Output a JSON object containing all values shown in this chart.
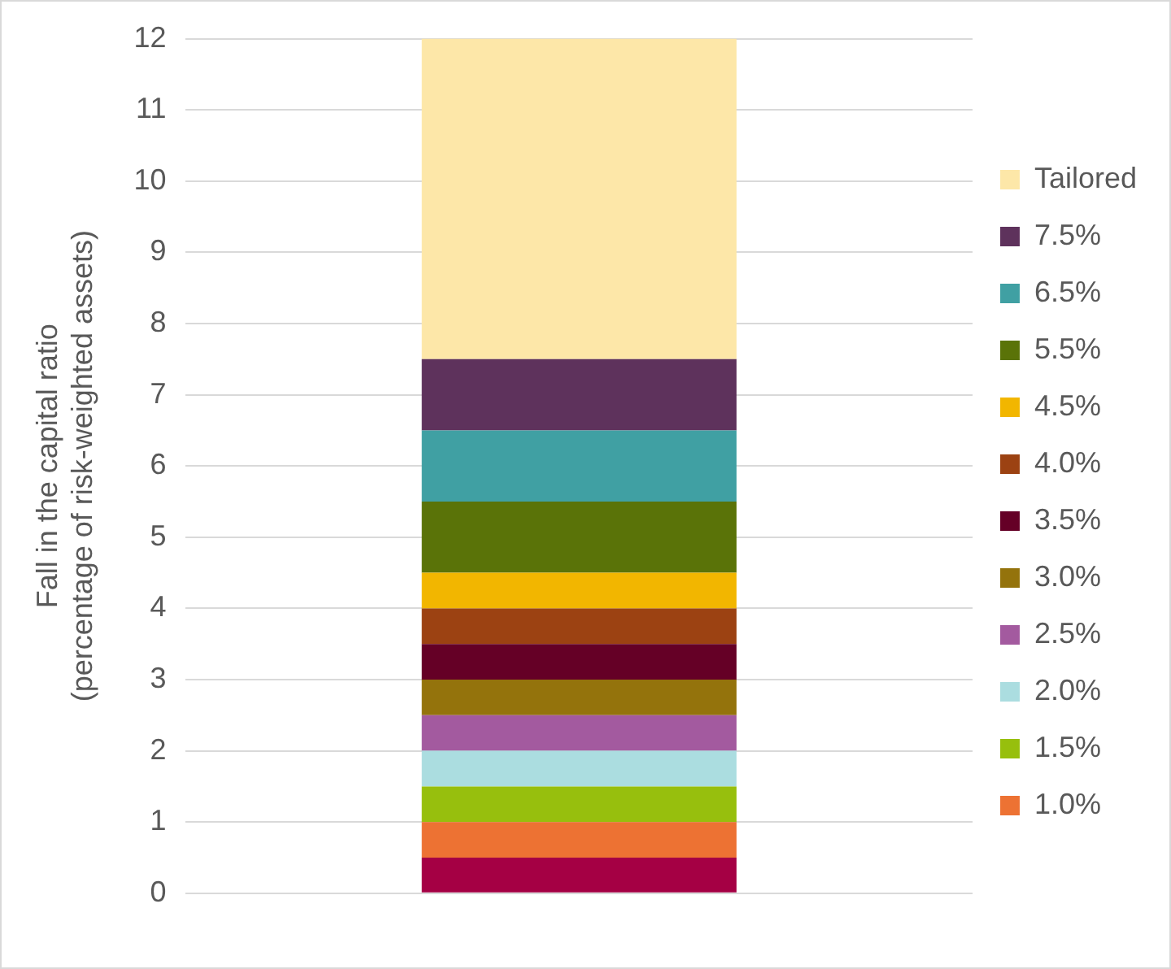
{
  "chart_data": {
    "type": "bar",
    "ylabel": "Fall in the capital ratio\n(percentage of risk-weighted assets)",
    "categories": [
      null
    ],
    "stacked": true,
    "ylim": [
      0,
      12
    ],
    "yticks": [
      0,
      1,
      2,
      3,
      4,
      5,
      6,
      7,
      8,
      9,
      10,
      11,
      12
    ],
    "grid": "y",
    "legend": "right",
    "series": [
      {
        "color": "#a50044",
        "values": [
          0.5
        ]
      },
      {
        "name": "1.0%",
        "color": "#ed7233",
        "values": [
          0.5
        ]
      },
      {
        "name": "1.5%",
        "color": "#97bf0d",
        "values": [
          0.5
        ]
      },
      {
        "name": "2.0%",
        "color": "#abdde0",
        "values": [
          0.5
        ]
      },
      {
        "name": "2.5%",
        "color": "#a35a9f",
        "values": [
          0.5
        ]
      },
      {
        "name": "3.0%",
        "color": "#94730c",
        "values": [
          0.5
        ]
      },
      {
        "name": "3.5%",
        "color": "#650026",
        "values": [
          0.5
        ]
      },
      {
        "name": "4.0%",
        "color": "#9c4212",
        "values": [
          0.5
        ]
      },
      {
        "name": "4.5%",
        "color": "#f2b600",
        "values": [
          0.5
        ]
      },
      {
        "name": "5.5%",
        "color": "#5a7308",
        "values": [
          1
        ]
      },
      {
        "name": "6.5%",
        "color": "#40a0a3",
        "values": [
          1
        ]
      },
      {
        "name": "7.5%",
        "color": "#5e325c",
        "values": [
          1
        ]
      },
      {
        "name": "Tailored",
        "color": "#fde7a8",
        "values": [
          4.5
        ]
      }
    ]
  }
}
